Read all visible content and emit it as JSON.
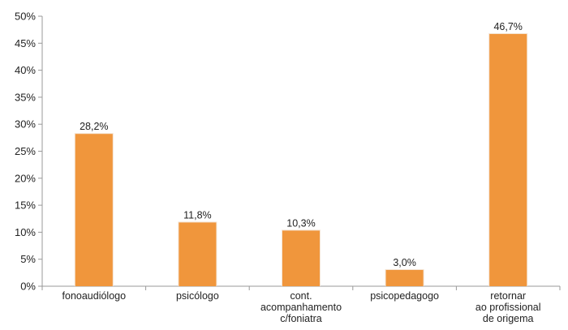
{
  "chart_data": {
    "type": "bar",
    "categories": [
      [
        "fonoaudiólogo"
      ],
      [
        "psicólogo"
      ],
      [
        "cont.",
        "acompanhamento",
        "c/foniatra"
      ],
      [
        "psicopedagogo"
      ],
      [
        "retornar",
        "ao profissional",
        "de origema"
      ]
    ],
    "values": [
      28.2,
      11.8,
      10.3,
      3.0,
      46.7
    ],
    "data_labels": [
      "28,2%",
      "11,8%",
      "10,3%",
      "3,0%",
      "46,7%"
    ],
    "y_ticks": [
      "0%",
      "5%",
      "10%",
      "15%",
      "20%",
      "25%",
      "30%",
      "35%",
      "40%",
      "45%",
      "50%"
    ],
    "ylim": [
      0,
      50
    ],
    "grid": false,
    "colors": {
      "bar": "#f0963c",
      "axis": "#999999"
    }
  }
}
